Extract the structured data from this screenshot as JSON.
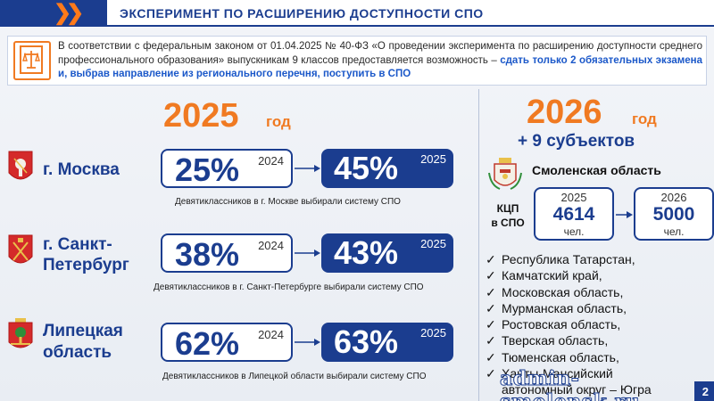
{
  "header": {
    "title": "ЭКСПЕРИМЕНТ ПО РАСШИРЕНИЮ ДОСТУПНОСТИ СПО"
  },
  "intro": {
    "text": "В соответствии с федеральным законом от 01.04.2025 № 40-ФЗ «О проведении эксперимента по расширению доступности среднего профессионального образования» выпускникам 9 классов предоставляется возможность –",
    "highlight": "сдать только 2 обязательных экзамена и, выбрав направление из регионального перечня, поступить в СПО"
  },
  "left": {
    "year": "2025",
    "year_suffix": "год",
    "regions": [
      {
        "name_line1": "г. Москва",
        "name_line2": "",
        "old_pct": "25%",
        "old_year": "2024",
        "new_pct": "45%",
        "new_year": "2025",
        "caption": "Девятиклассников в г. Москве выбирали систему СПО"
      },
      {
        "name_line1": "г. Санкт-",
        "name_line2": "Петербург",
        "old_pct": "38%",
        "old_year": "2024",
        "new_pct": "43%",
        "new_year": "2025",
        "caption": "Девятиклассников в г. Санкт-Петербурге выбирали систему СПО"
      },
      {
        "name_line1": "Липецкая",
        "name_line2": "область",
        "old_pct": "62%",
        "old_year": "2024",
        "new_pct": "63%",
        "new_year": "2025",
        "caption": "Девятиклассников в Липецкой области выбирали систему СПО"
      }
    ]
  },
  "right": {
    "year": "2026",
    "year_suffix": "год",
    "plus_subjects": "+ 9 субъектов",
    "region": "Смоленская область",
    "kcp_label_line1": "КЦП",
    "kcp_label_line2": "в СПО",
    "kcp": [
      {
        "year": "2025",
        "value": "4614",
        "unit": "чел."
      },
      {
        "year": "2026",
        "value": "5000",
        "unit": "чел."
      }
    ],
    "subjects": [
      "Республика Татарстан,",
      "Камчатский край,",
      "Московская область,",
      "Мурманская область,",
      "Ростовская область,",
      "Тверская область,",
      "Тюменская область,",
      "Ханты-Мансийский",
      "автономный округ – Югра"
    ]
  },
  "watermark": "admin-smolensk.ru",
  "page_number": "2",
  "colors": {
    "primary": "#1b3d8f",
    "accent": "#f07a22",
    "highlight": "#1b58c9"
  }
}
